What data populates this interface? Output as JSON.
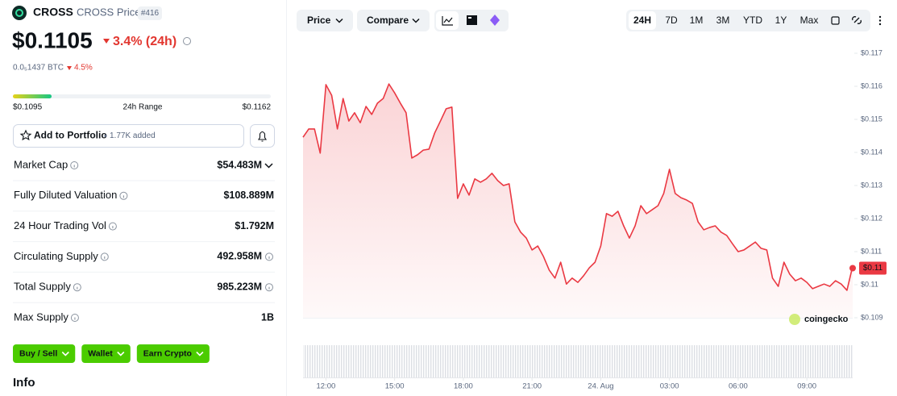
{
  "header": {
    "symbol": "CROSS",
    "name": "CROSS Price",
    "rank": "#416"
  },
  "price": {
    "value": "$0.1105",
    "change": "3.4% (24h)",
    "btc_price": "0.0₅1437 BTC",
    "btc_change": "4.5%"
  },
  "range": {
    "low": "$0.1095",
    "label": "24h Range",
    "high": "$0.1162"
  },
  "portfolio": {
    "button": "Add to Portfolio",
    "added": "1.77K added"
  },
  "stats": [
    {
      "label": "Market Cap",
      "value": "$54.483M"
    },
    {
      "label": "Fully Diluted Valuation",
      "value": "$108.889M"
    },
    {
      "label": "24 Hour Trading Vol",
      "value": "$1.792M"
    },
    {
      "label": "Circulating Supply",
      "value": "492.958M"
    },
    {
      "label": "Total Supply",
      "value": "985.223M"
    },
    {
      "label": "Max Supply",
      "value": "1B"
    }
  ],
  "actions": [
    "Buy / Sell",
    "Wallet",
    "Earn Crypto"
  ],
  "info_heading": "Info",
  "toolbar": {
    "price": "Price",
    "compare": "Compare",
    "ranges": [
      "24H",
      "7D",
      "1M",
      "3M",
      "YTD",
      "1Y",
      "Max"
    ]
  },
  "chart_data": {
    "type": "line",
    "x": [
      11,
      11.25,
      11.5,
      11.75,
      12,
      12.25,
      12.5,
      12.75,
      13,
      13.25,
      13.5,
      13.75,
      14,
      14.25,
      14.5,
      14.75,
      15,
      15.25,
      15.5,
      15.75,
      16,
      16.25,
      16.5,
      16.75,
      17,
      17.25,
      17.5,
      17.75,
      18,
      18.25,
      18.5,
      18.75,
      19,
      19.25,
      19.5,
      19.75,
      20,
      20.25,
      20.5,
      20.75,
      21,
      21.25,
      21.5,
      21.75,
      22,
      22.25,
      22.5,
      22.75,
      23,
      23.25,
      23.5,
      23.75,
      24,
      24.25,
      24.5,
      24.75,
      25,
      25.25,
      25.5,
      25.75,
      26,
      26.25,
      26.5,
      26.75,
      27,
      27.25,
      27.5,
      27.75,
      28,
      28.25,
      28.5,
      28.75,
      29,
      29.25,
      29.5,
      29.75,
      30,
      30.25,
      30.5,
      30.75,
      31,
      31.25,
      31.5,
      31.75,
      32,
      32.25,
      32.5,
      32.75,
      33,
      33.25,
      33.5,
      33.75,
      34,
      34.25,
      34.5,
      34.75,
      35
    ],
    "xlim": [
      11,
      35
    ],
    "xticks": [
      {
        "value": 12,
        "label": "12:00"
      },
      {
        "value": 15,
        "label": "15:00"
      },
      {
        "value": 18,
        "label": "18:00"
      },
      {
        "value": 21,
        "label": "21:00"
      },
      {
        "value": 24,
        "label": "24. Aug"
      },
      {
        "value": 27,
        "label": "03:00"
      },
      {
        "value": 30,
        "label": "06:00"
      },
      {
        "value": 33,
        "label": "09:00"
      }
    ],
    "series": [
      {
        "color": "#ea3943",
        "values": [
          0.11446,
          0.11471,
          0.11471,
          0.11398,
          0.11605,
          0.11573,
          0.11471,
          0.11563,
          0.11495,
          0.1152,
          0.1149,
          0.11539,
          0.11515,
          0.11549,
          0.11563,
          0.11607,
          0.1158,
          0.11549,
          0.1152,
          0.11383,
          0.11393,
          0.11407,
          0.1141,
          0.11459,
          0.11495,
          0.11532,
          0.11537,
          0.11261,
          0.11305,
          0.11271,
          0.1132,
          0.1131,
          0.1132,
          0.11337,
          0.11315,
          0.113,
          0.11305,
          0.1119,
          0.11159,
          0.11141,
          0.11105,
          0.11117,
          0.11085,
          0.11044,
          0.1102,
          0.11068,
          0.11002,
          0.1102,
          0.11007,
          0.11027,
          0.11051,
          0.11068,
          0.11117,
          0.11215,
          0.11207,
          0.11222,
          0.11178,
          0.11141,
          0.11178,
          0.11239,
          0.11215,
          0.11227,
          0.11239,
          0.11276,
          0.11349,
          0.11276,
          0.11263,
          0.11256,
          0.11246,
          0.1119,
          0.11166,
          0.11173,
          0.11178,
          0.11159,
          0.11149,
          0.11124,
          0.111,
          0.11105,
          0.11117,
          0.11129,
          0.1111,
          0.11105,
          0.1102,
          0.10995,
          0.11068,
          0.11032,
          0.11012,
          0.1102,
          0.11007,
          0.10988,
          0.10995,
          0.11002,
          0.10995,
          0.11012,
          0.11002,
          0.10983,
          0.11056
        ]
      }
    ],
    "ylim": [
      0.109,
      0.117
    ],
    "yticks": [
      {
        "value": 0.117,
        "label": "$0.117"
      },
      {
        "value": 0.116,
        "label": "$0.116"
      },
      {
        "value": 0.115,
        "label": "$0.115"
      },
      {
        "value": 0.114,
        "label": "$0.114"
      },
      {
        "value": 0.113,
        "label": "$0.113"
      },
      {
        "value": 0.112,
        "label": "$0.112"
      },
      {
        "value": 0.111,
        "label": "$0.111"
      },
      {
        "value": 0.11,
        "label": "$0.11"
      },
      {
        "value": 0.109,
        "label": "$0.109"
      }
    ],
    "current_price": {
      "value": 0.1105,
      "label": "$0.11"
    },
    "watermark": "coingecko"
  }
}
